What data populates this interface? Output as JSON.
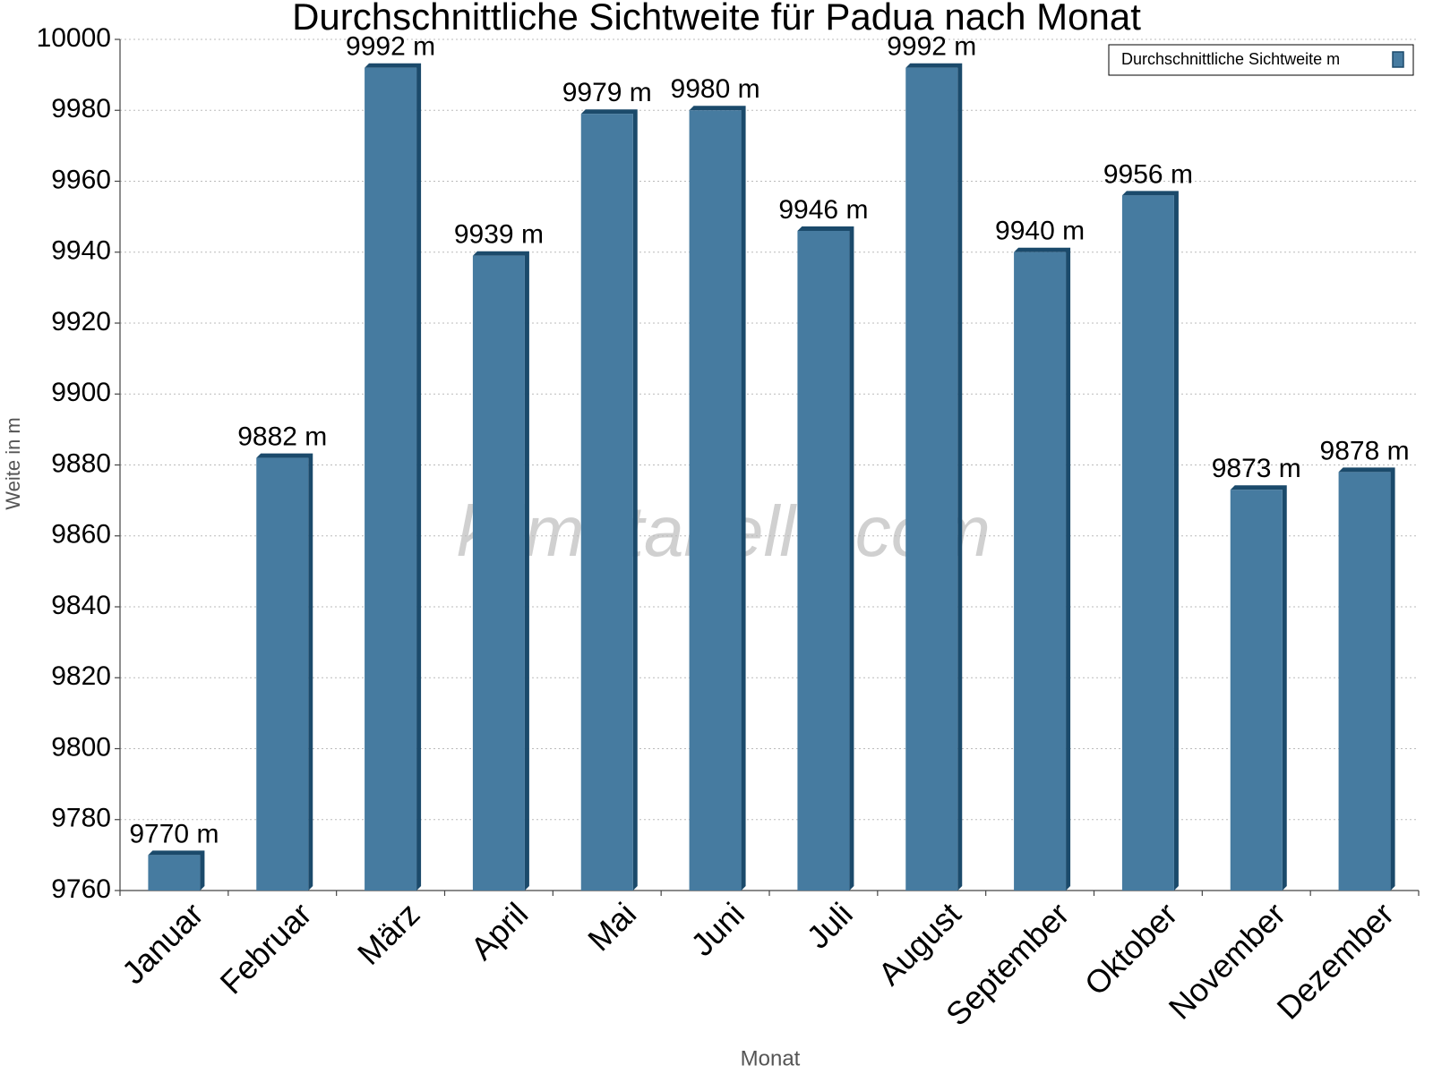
{
  "chart_data": {
    "type": "bar",
    "title": "Durchschnittliche Sichtweite für Padua nach Monat",
    "x_label": "Monat",
    "y_label": "Weite in m",
    "watermark": "klimatabelle.com",
    "categories": [
      "Januar",
      "Februar",
      "März",
      "April",
      "Mai",
      "Juni",
      "Juli",
      "August",
      "September",
      "Oktober",
      "November",
      "Dezember"
    ],
    "series": [
      {
        "name": "Durchschnittliche Sichtweite m",
        "color": "#467ba0",
        "values": [
          9770,
          9882,
          9992,
          9939,
          9979,
          9980,
          9946,
          9992,
          9940,
          9956,
          9873,
          9878
        ],
        "value_labels": [
          "9770 m",
          "9882 m",
          "9992 m",
          "9939 m",
          "9979 m",
          "9980 m",
          "9946 m",
          "9992 m",
          "9940 m",
          "9956 m",
          "9873 m",
          "9878 m"
        ]
      }
    ],
    "ylim": [
      9760,
      10000
    ],
    "yticks": [
      9760,
      9780,
      9800,
      9820,
      9840,
      9860,
      9880,
      9900,
      9920,
      9940,
      9960,
      9980,
      10000
    ],
    "grid": true,
    "legend": "top-right"
  }
}
